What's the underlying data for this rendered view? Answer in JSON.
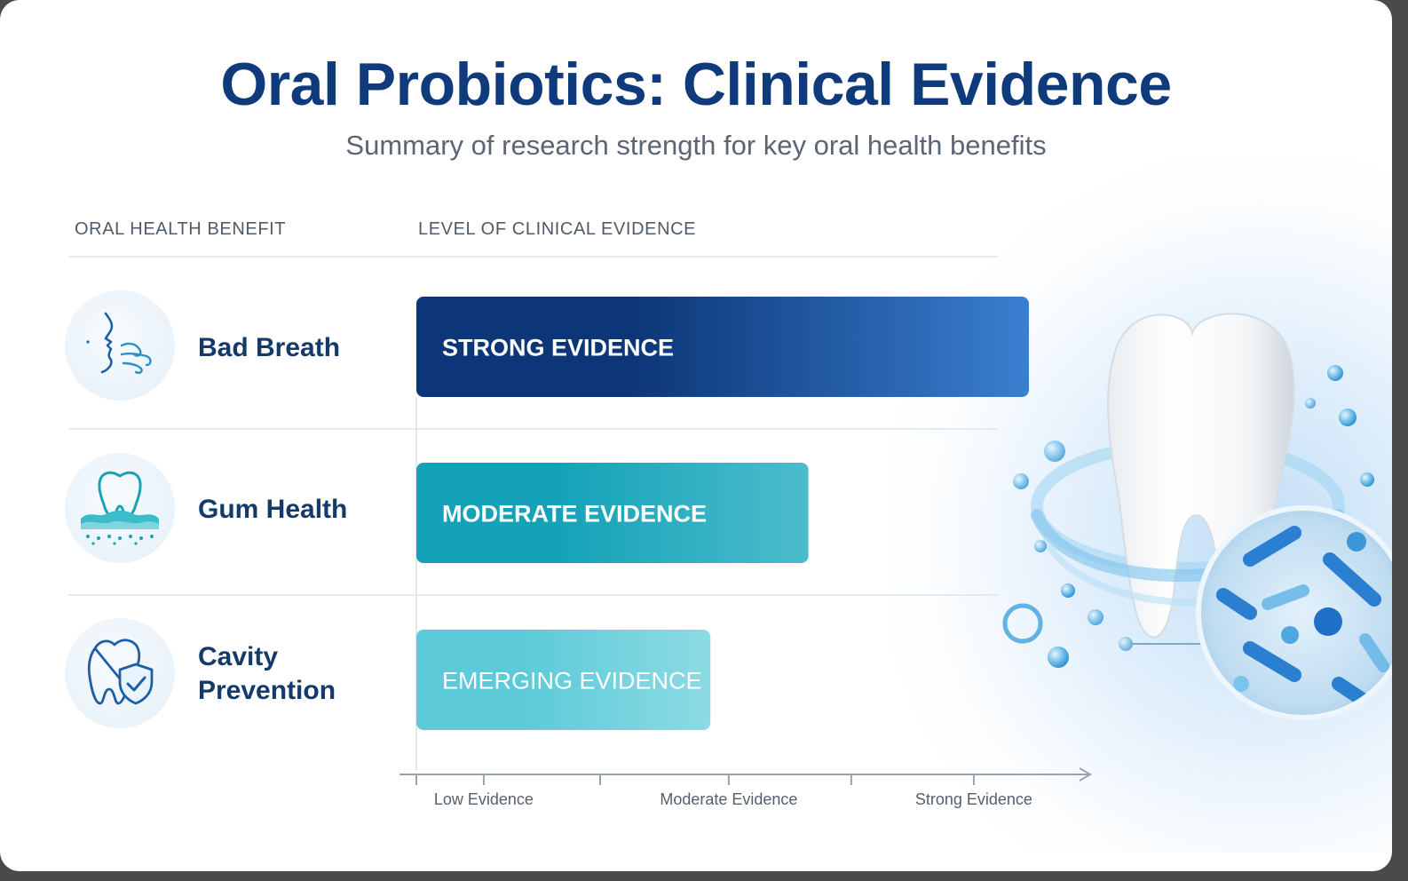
{
  "title": "Oral Probiotics: Clinical Evidence",
  "subtitle": "Summary of research strength for key oral health benefits",
  "columns": {
    "benefit": "ORAL HEALTH BENEFIT",
    "evidence": "LEVEL OF CLINICAL EVIDENCE"
  },
  "rows": [
    {
      "benefit": "Bad Breath",
      "icon": "breath-icon"
    },
    {
      "benefit": "Gum Health",
      "icon": "gum-tooth-icon"
    },
    {
      "benefit": "Cavity Prevention",
      "icon": "tooth-shield-icon"
    }
  ],
  "chart_data": {
    "type": "bar",
    "orientation": "horizontal",
    "title": "Oral Probiotics: Clinical Evidence",
    "subtitle": "Summary of research strength for key oral health benefits",
    "categories": [
      "Bad Breath",
      "Gum Health",
      "Cavity Prevention"
    ],
    "values": [
      5,
      3.2,
      2.4
    ],
    "bar_labels": [
      "STRONG EVIDENCE",
      "MODERATE EVIDENCE",
      "EMERGING EVIDENCE"
    ],
    "xlim": [
      0,
      5
    ],
    "x_ticks": [
      {
        "value": 0.55,
        "label": "Low Evidence"
      },
      {
        "value": 2.55,
        "label": "Moderate Evidence"
      },
      {
        "value": 4.55,
        "label": "Strong Evidence"
      }
    ],
    "minor_ticks": [
      1.5,
      3.55
    ],
    "grid": false,
    "colors": [
      [
        "#0c3677",
        "#3a7fd0"
      ],
      [
        "#13a2b8",
        "#4cbccc"
      ],
      [
        "#5ccad8",
        "#8cdbe4"
      ]
    ]
  },
  "illustration": {
    "tooth": "tooth-illustration",
    "bacteria": "bacteria-magnifier"
  }
}
